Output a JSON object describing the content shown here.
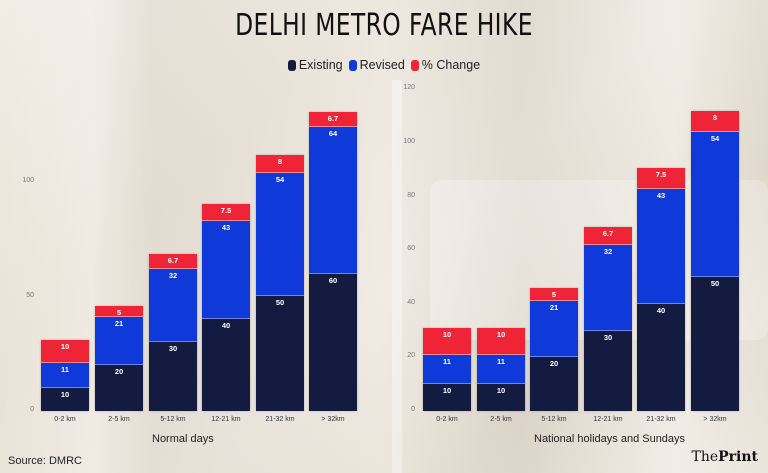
{
  "title": "DELHI METRO FARE HIKE",
  "legend": [
    {
      "label": "Existing",
      "color": "#131c40"
    },
    {
      "label": "Revised",
      "color": "#1039d9"
    },
    {
      "label": "% Change",
      "color": "#ef2437"
    }
  ],
  "source": "Source: DMRC",
  "brand": {
    "prefix": "The",
    "suffix": "Print"
  },
  "charts": [
    {
      "caption": "Normal days",
      "yticks": [
        "0",
        "50",
        "100"
      ]
    },
    {
      "caption": "National holidays and Sundays",
      "yticks": [
        "0",
        "20",
        "40",
        "60",
        "80",
        "100",
        "120"
      ]
    }
  ],
  "chart_data": [
    {
      "type": "bar",
      "stacked": true,
      "title": "Normal days",
      "categories": [
        "0-2 km",
        "2-5 km",
        "5-12 km",
        "12-21 km",
        "21-32 km",
        "> 32km"
      ],
      "series": [
        {
          "name": "Existing",
          "values": [
            10,
            20,
            30,
            40,
            50,
            60
          ],
          "color": "#131c40"
        },
        {
          "name": "Revised",
          "values": [
            11,
            21,
            32,
            43,
            54,
            64
          ],
          "color": "#1039d9"
        },
        {
          "name": "% Change",
          "values": [
            10,
            5,
            6.7,
            7.5,
            8,
            6.7
          ],
          "color": "#ef2437"
        }
      ],
      "xlabel": "Normal days",
      "ylabel": "",
      "yticks": [
        0,
        50,
        100
      ],
      "ylim": [
        0,
        140
      ],
      "grid": false,
      "legend_position": "top"
    },
    {
      "type": "bar",
      "stacked": true,
      "title": "National holidays and Sundays",
      "categories": [
        "0-2 km",
        "2-5 km",
        "5-12 km",
        "12-21 km",
        "21-32 km",
        "> 32km"
      ],
      "series": [
        {
          "name": "Existing",
          "values": [
            10,
            10,
            20,
            30,
            40,
            50
          ],
          "color": "#131c40"
        },
        {
          "name": "Revised",
          "values": [
            11,
            11,
            21,
            32,
            43,
            54
          ],
          "color": "#1039d9"
        },
        {
          "name": "% Change",
          "values": [
            10,
            10,
            5,
            6.7,
            7.5,
            8
          ],
          "color": "#ef2437"
        }
      ],
      "xlabel": "National holidays and Sundays",
      "ylabel": "",
      "yticks": [
        0,
        20,
        40,
        60,
        80,
        100,
        120
      ],
      "ylim": [
        0,
        120
      ],
      "grid": false,
      "legend_position": "top"
    }
  ]
}
